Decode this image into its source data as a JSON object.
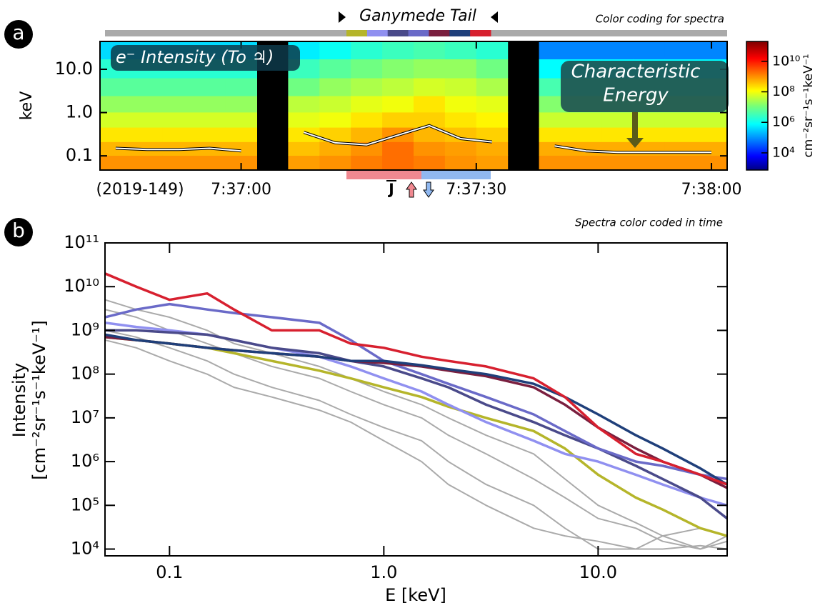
{
  "chart_data": [
    {
      "type": "heatmap",
      "panel_label": "a",
      "title": "Ganymede Tail",
      "subtitle": "Color coding for spectra",
      "intensity_label": "e⁻ Intensity (To ♃)",
      "energy_label": [
        "Characteristic",
        "Energy"
      ],
      "date_label": "(2019-149)",
      "current_label": "J",
      "ylabel": "keV",
      "log_y": true,
      "ylim": [
        0.047,
        44
      ],
      "yticks": [
        0.1,
        {
          "value": 1,
          "label": "1.0"
        },
        {
          "value": 10,
          "label": "10.0"
        }
      ],
      "xlim": [
        "7:36:42",
        "7:38:02"
      ],
      "xticks": [
        "7:37:00",
        "7:37:30",
        "7:38:00"
      ],
      "x": [
        "7:36:42",
        "7:36:46",
        "7:36:50",
        "7:36:54",
        "7:36:58",
        "7:37:02",
        "7:37:06",
        "7:37:10",
        "7:37:14",
        "7:37:18",
        "7:37:22",
        "7:37:26",
        "7:37:30",
        "7:37:34",
        "7:37:38",
        "7:37:42",
        "7:37:46",
        "7:37:50",
        "7:37:54",
        "7:37:58"
      ],
      "energies": [
        0.07,
        0.15,
        0.3,
        0.7,
        1.5,
        4,
        10,
        30
      ],
      "z": [
        [
          1000000000.0,
          500000000.0,
          200000000.0,
          60000000.0,
          20000000.0,
          6000000.0,
          2000000.0,
          400000.0
        ],
        [
          1000000000.0,
          500000000.0,
          200000000.0,
          60000000.0,
          20000000.0,
          6000000.0,
          2000000.0,
          400000.0
        ],
        [
          1000000000.0,
          500000000.0,
          200000000.0,
          60000000.0,
          20000000.0,
          6000000.0,
          2000000.0,
          400000.0
        ],
        [
          1000000000.0,
          500000000.0,
          200000000.0,
          60000000.0,
          20000000.0,
          6000000.0,
          2000000.0,
          400000.0
        ],
        [
          1000000000.0,
          500000000.0,
          200000000.0,
          60000000.0,
          20000000.0,
          6000000.0,
          2000000.0,
          400000.0
        ],
        null,
        [
          800000000.0,
          400000000.0,
          200000000.0,
          80000000.0,
          40000000.0,
          10000000.0,
          3000000.0,
          600000.0
        ],
        [
          1000000000.0,
          600000000.0,
          300000000.0,
          100000000.0,
          50000000.0,
          20000000.0,
          6000000.0,
          1000000.0
        ],
        [
          1500000000.0,
          1000000000.0,
          500000000.0,
          200000000.0,
          80000000.0,
          30000000.0,
          10000000.0,
          2000000.0
        ],
        [
          2000000000.0,
          2000000000.0,
          1000000000.0,
          300000000.0,
          100000000.0,
          40000000.0,
          15000000.0,
          3000000.0
        ],
        [
          1500000000.0,
          1000000000.0,
          500000000.0,
          300000000.0,
          200000000.0,
          60000000.0,
          20000000.0,
          4000000.0
        ],
        [
          1000000000.0,
          800000000.0,
          400000000.0,
          200000000.0,
          100000000.0,
          50000000.0,
          20000000.0,
          3000000.0
        ],
        [
          800000000.0,
          600000000.0,
          300000000.0,
          150000000.0,
          80000000.0,
          30000000.0,
          10000000.0,
          2000000.0
        ],
        null,
        [
          1000000000.0,
          600000000.0,
          200000000.0,
          50000000.0,
          15000000.0,
          4000000.0,
          800000.0,
          80000.0
        ],
        [
          1000000000.0,
          600000000.0,
          200000000.0,
          50000000.0,
          15000000.0,
          4000000.0,
          800000.0,
          80000.0
        ],
        [
          1000000000.0,
          600000000.0,
          200000000.0,
          50000000.0,
          15000000.0,
          4000000.0,
          800000.0,
          80000.0
        ],
        [
          1000000000.0,
          600000000.0,
          200000000.0,
          50000000.0,
          15000000.0,
          4000000.0,
          800000.0,
          80000.0
        ],
        [
          1000000000.0,
          600000000.0,
          200000000.0,
          50000000.0,
          15000000.0,
          4000000.0,
          800000.0,
          80000.0
        ],
        [
          1000000000.0,
          600000000.0,
          200000000.0,
          50000000.0,
          15000000.0,
          4000000.0,
          800000.0,
          80000.0
        ]
      ],
      "colormap": "rainbow",
      "zlim": [
        750,
        200000000000.0
      ],
      "zticks": [
        {
          "value": 10000,
          "label": "10⁴"
        },
        {
          "value": 1000000,
          "label": "10⁶"
        },
        {
          "value": 100000000,
          "label": "10⁸"
        },
        {
          "value": 10000000000,
          "label": "10¹⁰"
        }
      ],
      "zlabel": "cm⁻²sr⁻¹s⁻¹keV⁻¹",
      "line": {
        "color": "#ffffff",
        "values": [
          0.15,
          0.14,
          0.14,
          0.15,
          0.13,
          null,
          0.35,
          0.2,
          0.18,
          0.3,
          0.5,
          0.25,
          0.21,
          null,
          0.17,
          0.13,
          0.12,
          0.12,
          0.12,
          0.12
        ]
      }
    },
    {
      "type": "line",
      "panel_label": "b",
      "subtitle": "Spectra color coded in time",
      "xlabel": "E [keV]",
      "ylabel": [
        "Intensity",
        "[cm⁻²sr⁻¹s⁻¹keV⁻¹]"
      ],
      "log_x": true,
      "log_y": true,
      "xlim": [
        0.05,
        40
      ],
      "ylim": [
        7000,
        100000000000.0
      ],
      "xticks": [
        0.1,
        {
          "value": 1,
          "label": "1.0"
        },
        {
          "value": 10,
          "label": "10.0"
        }
      ],
      "yticks": [
        {
          "value": 10000,
          "label": "10⁴"
        },
        {
          "value": 100000,
          "label": "10⁵"
        },
        {
          "value": 1000000,
          "label": "10⁶"
        },
        {
          "value": 10000000,
          "label": "10⁷"
        },
        {
          "value": 100000000,
          "label": "10⁸"
        },
        {
          "value": 1000000000,
          "label": "10⁹"
        },
        {
          "value": 10000000000,
          "label": "10¹⁰"
        },
        {
          "value": 100000000000,
          "label": "10¹¹"
        }
      ],
      "x": [
        0.05,
        0.07,
        0.1,
        0.15,
        0.2,
        0.3,
        0.5,
        0.7,
        1,
        1.5,
        2,
        3,
        5,
        7,
        10,
        15,
        20,
        30,
        40
      ],
      "series": [
        {
          "color": "#aaaaaa",
          "values": [
            5000000000.0,
            3000000000.0,
            2000000000.0,
            1000000000.0,
            500000000.0,
            300000000.0,
            150000000.0,
            80000000.0,
            40000000.0,
            20000000.0,
            10000000.0,
            4000000.0,
            1500000.0,
            400000.0,
            100000.0,
            40000.0,
            20000.0,
            10000.0,
            20000.0
          ]
        },
        {
          "color": "#aaaaaa",
          "values": [
            3000000000.0,
            2000000000.0,
            1000000000.0,
            500000000.0,
            300000000.0,
            150000000.0,
            80000000.0,
            40000000.0,
            20000000.0,
            10000000.0,
            4000000.0,
            1500000.0,
            400000.0,
            150000.0,
            50000.0,
            30000.0,
            15000.0,
            10000.0,
            15000.0
          ]
        },
        {
          "color": "#aaaaaa",
          "values": [
            1000000000.0,
            700000000.0,
            400000000.0,
            200000000.0,
            100000000.0,
            50000000.0,
            25000000.0,
            12000000.0,
            6000000.0,
            3000000.0,
            1000000.0,
            300000.0,
            100000.0,
            30000.0,
            10000.0,
            10000.0,
            20000.0,
            30000.0,
            20000.0
          ]
        },
        {
          "color": "#aaaaaa",
          "values": [
            600000000.0,
            400000000.0,
            200000000.0,
            100000000.0,
            50000000.0,
            30000000.0,
            15000000.0,
            8000000.0,
            3000000.0,
            1000000.0,
            300000.0,
            100000.0,
            30000.0,
            20000.0,
            15000.0,
            10000.0,
            10000.0,
            12000.0,
            10000.0
          ]
        },
        {
          "color": "#b5b52a",
          "values": [
            700000000.0,
            600000000.0,
            500000000.0,
            400000000.0,
            300000000.0,
            200000000.0,
            120000000.0,
            80000000.0,
            50000000.0,
            30000000.0,
            18000000.0,
            10000000.0,
            5000000.0,
            2000000.0,
            500000.0,
            150000.0,
            80000.0,
            30000.0,
            20000.0
          ]
        },
        {
          "color": "#9090f0",
          "values": [
            1500000000.0,
            1200000000.0,
            1000000000.0,
            800000000.0,
            600000000.0,
            400000000.0,
            250000000.0,
            150000000.0,
            80000000.0,
            40000000.0,
            20000000.0,
            8000000.0,
            3000000.0,
            1500000.0,
            1000000.0,
            500000.0,
            300000.0,
            150000.0,
            100000.0
          ]
        },
        {
          "color": "#4a4a8a",
          "values": [
            1000000000.0,
            1000000000.0,
            900000000.0,
            800000000.0,
            600000000.0,
            400000000.0,
            300000000.0,
            200000000.0,
            150000000.0,
            80000000.0,
            50000000.0,
            20000000.0,
            8000000.0,
            4000000.0,
            2000000.0,
            800000.0,
            400000.0,
            150000.0,
            50000.0
          ]
        },
        {
          "color": "#6a6ac8",
          "values": [
            2000000000.0,
            3000000000.0,
            4000000000.0,
            3000000000.0,
            2500000000.0,
            2000000000.0,
            1500000000.0,
            600000000.0,
            200000000.0,
            100000000.0,
            60000000.0,
            30000000.0,
            12000000.0,
            5000000.0,
            2000000.0,
            1000000.0,
            800000.0,
            500000.0,
            400000.0
          ]
        },
        {
          "color": "#7a1f3f",
          "values": [
            700000000.0,
            600000000.0,
            500000000.0,
            400000000.0,
            350000000.0,
            300000000.0,
            250000000.0,
            200000000.0,
            180000000.0,
            150000000.0,
            120000000.0,
            90000000.0,
            50000000.0,
            20000000.0,
            6000000.0,
            2000000.0,
            1000000.0,
            500000.0,
            250000.0
          ]
        },
        {
          "color": "#1f3f7a",
          "values": [
            800000000.0,
            600000000.0,
            500000000.0,
            400000000.0,
            350000000.0,
            300000000.0,
            250000000.0,
            200000000.0,
            200000000.0,
            160000000.0,
            130000000.0,
            100000000.0,
            60000000.0,
            30000000.0,
            12000000.0,
            4000000.0,
            2000000.0,
            700000.0,
            300000.0
          ]
        },
        {
          "color": "#d7202f",
          "values": [
            20000000000.0,
            10000000000.0,
            5000000000.0,
            7000000000.0,
            3000000000.0,
            1000000000.0,
            1000000000.0,
            500000000.0,
            400000000.0,
            250000000.0,
            200000000.0,
            150000000.0,
            80000000.0,
            30000000.0,
            6000000.0,
            1500000.0,
            1000000.0,
            500000.0,
            300000.0
          ]
        }
      ]
    }
  ]
}
